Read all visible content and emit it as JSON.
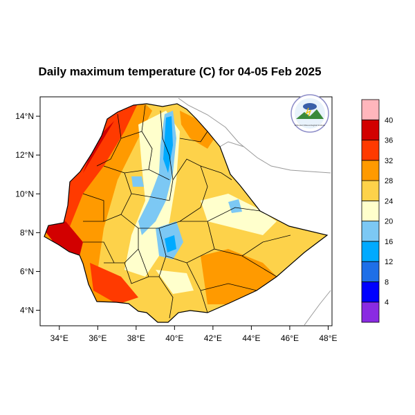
{
  "title": "Daily maximum temperature (C) for 04-05 Feb 2025",
  "map": {
    "lon_range": [
      33,
      48.2
    ],
    "lat_range": [
      3.2,
      15
    ],
    "xticks": [
      "34°E",
      "36°E",
      "38°E",
      "40°E",
      "42°E",
      "44°E",
      "46°E",
      "48°E"
    ],
    "yticks": [
      "4°N",
      "6°N",
      "8°N",
      "10°N",
      "12°N",
      "14°N"
    ]
  },
  "colorbar": {
    "labels": [
      "4",
      "8",
      "12",
      "16",
      "20",
      "24",
      "28",
      "32",
      "36",
      "40"
    ],
    "colors": [
      "#8a2be2",
      "#0000ff",
      "#1e6fe8",
      "#00aaff",
      "#7cc8f4",
      "#ffffcc",
      "#fdd24a",
      "#ff9a00",
      "#ff3a00",
      "#d20000",
      "#ffb6bc"
    ]
  },
  "logo": {
    "text": "Ethiopian Meteorological Institute"
  }
}
